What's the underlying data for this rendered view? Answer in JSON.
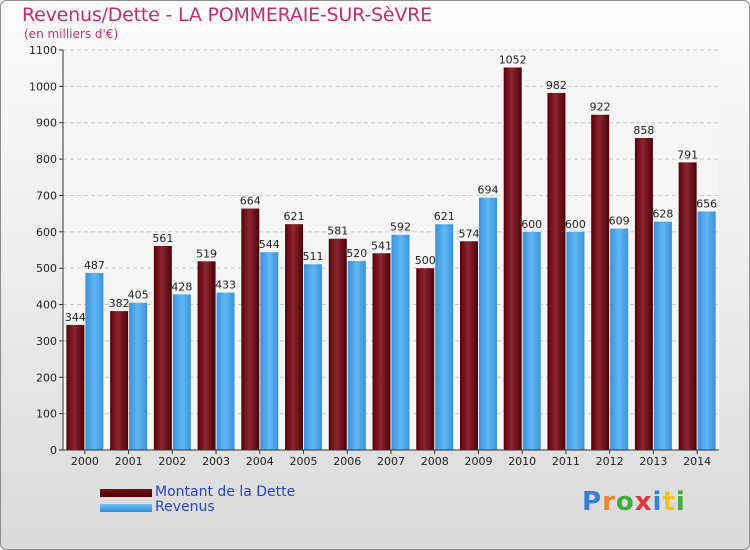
{
  "header": {
    "title": "Revenus/Dette - LA POMMERAIE-SUR-SèVRE",
    "subtitle": "(en milliers d'€)"
  },
  "legend": {
    "items": [
      {
        "label": "Montant de la Dette",
        "color": "#6b0a12"
      },
      {
        "label": "Revenus",
        "color": "#4aa8ea"
      }
    ]
  },
  "logo": {
    "text": "Proxiti",
    "letters": [
      {
        "ch": "P",
        "color": "#3a7fd4"
      },
      {
        "ch": "r",
        "color": "#e9852a"
      },
      {
        "ch": "o",
        "color": "#3fae3f"
      },
      {
        "ch": "x",
        "color": "#d73a3a"
      },
      {
        "ch": "i",
        "color": "#3a7fd4"
      },
      {
        "ch": "t",
        "color": "#e9c52a"
      },
      {
        "ch": "i",
        "color": "#3fae3f"
      }
    ]
  },
  "chart_data": {
    "type": "bar",
    "title": "Revenus/Dette - LA POMMERAIE-SUR-SèVRE",
    "ylabel": "(en milliers d'€)",
    "xlabel": "",
    "ylim": [
      0,
      1100
    ],
    "ytick_step": 100,
    "grid": true,
    "categories": [
      "2000",
      "2001",
      "2002",
      "2003",
      "2004",
      "2005",
      "2006",
      "2007",
      "2008",
      "2009",
      "2010",
      "2011",
      "2012",
      "2013",
      "2014"
    ],
    "series": [
      {
        "name": "Montant de la Dette",
        "color": "#6b0a12",
        "values": [
          344,
          382,
          561,
          519,
          664,
          621,
          581,
          541,
          500,
          574,
          1052,
          982,
          922,
          858,
          791
        ]
      },
      {
        "name": "Revenus",
        "color": "#4aa8ea",
        "values": [
          487,
          405,
          428,
          433,
          544,
          511,
          520,
          592,
          621,
          694,
          600,
          600,
          609,
          628,
          656
        ]
      }
    ]
  }
}
